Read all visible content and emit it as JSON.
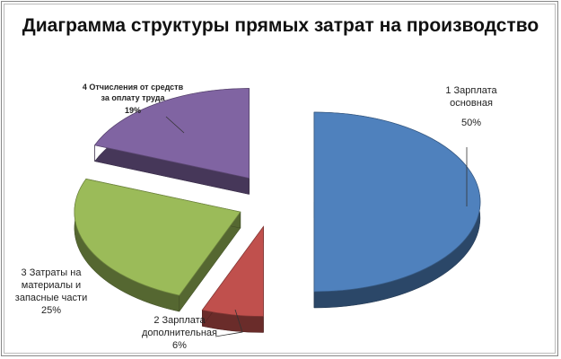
{
  "chart_data": {
    "type": "pie",
    "title": "Диаграмма структуры прямых затрат на производство",
    "categories": [
      "1 Зарплата\nосновная",
      "2 Зарплата\nдополнительная",
      "3 Затраты на\nматериалы и\nзапасные части",
      "4 Отчисления от средств\nза оплату труда"
    ],
    "values": [
      50,
      6,
      25,
      19
    ],
    "value_labels": [
      "50%",
      "6%",
      "25%",
      "19%"
    ],
    "colors": [
      "#4f81bd",
      "#c0504d",
      "#9bbb59",
      "#8064a2"
    ]
  }
}
